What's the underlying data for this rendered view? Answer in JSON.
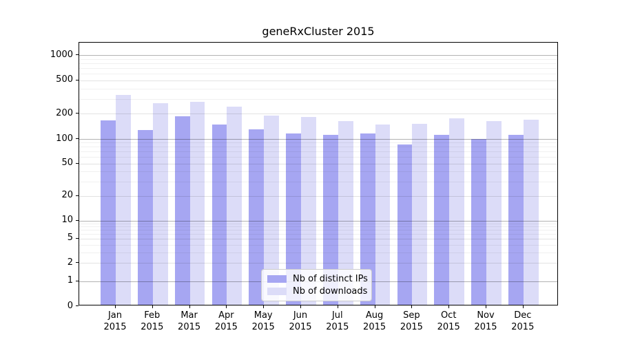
{
  "chart_data": {
    "type": "bar",
    "title": "geneRxCluster 2015",
    "categories": [
      "Jan 2015",
      "Feb 2015",
      "Mar 2015",
      "Apr 2015",
      "May 2015",
      "Jun 2015",
      "Jul 2015",
      "Aug 2015",
      "Sep 2015",
      "Oct 2015",
      "Nov 2015",
      "Dec 2015"
    ],
    "month_labels": [
      "Jan",
      "Feb",
      "Mar",
      "Apr",
      "May",
      "Jun",
      "Jul",
      "Aug",
      "Sep",
      "Oct",
      "Nov",
      "Dec"
    ],
    "year_label": "2015",
    "series": [
      {
        "name": "Nb of distinct IPs",
        "color": "#a6a6f2",
        "values": [
          160,
          124,
          181,
          142,
          126,
          113,
          108,
          112,
          82,
          108,
          96,
          107
        ]
      },
      {
        "name": "Nb of downloads",
        "color": "#dcdcf8",
        "values": [
          325,
          255,
          266,
          232,
          184,
          177,
          158,
          143,
          145,
          171,
          156,
          162
        ]
      }
    ],
    "y_axis": {
      "scale": "symlog",
      "tick_values": [
        1000,
        500,
        200,
        100,
        50,
        20,
        10,
        5,
        2,
        1,
        0
      ],
      "tick_labels": [
        "1000",
        "500",
        "200",
        "100",
        "50",
        "20",
        "10",
        "5",
        "2",
        "1",
        "0"
      ]
    },
    "xlabel": "",
    "ylabel": "",
    "grid": "horizontal",
    "legend_position": "lower center",
    "colors": {
      "distinct_ips": "#a6a6f2",
      "downloads": "#dcdcf8",
      "spine": "#000000"
    }
  }
}
